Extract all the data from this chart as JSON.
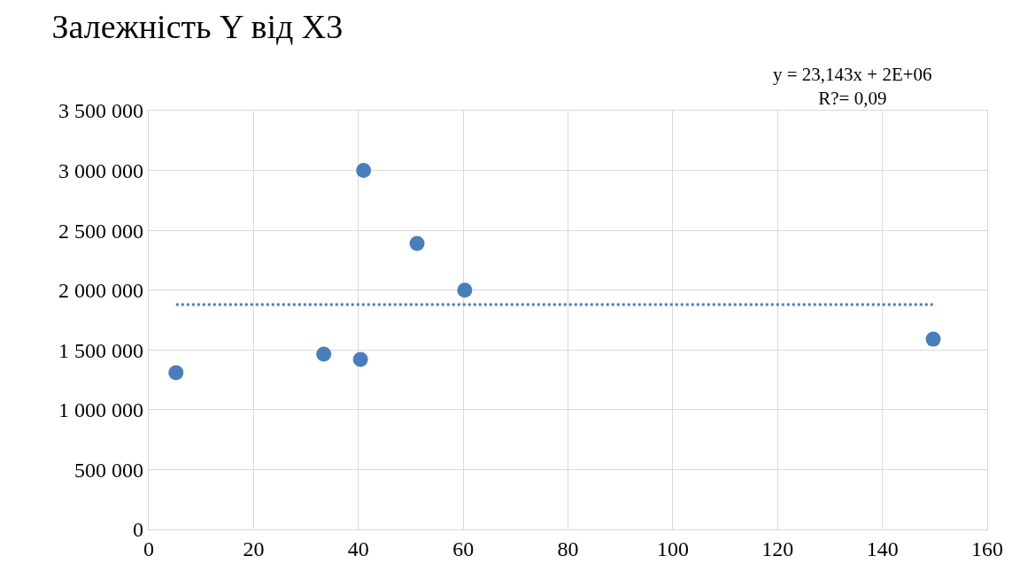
{
  "chart_data": {
    "type": "scatter",
    "title": "Залежність Y від X3",
    "annotations": [
      "y = 23,143x + 2E+06\nR?= 0,09"
    ],
    "xlim": [
      0,
      160
    ],
    "xticks": [
      0,
      20,
      40,
      60,
      80,
      100,
      120,
      140,
      160
    ],
    "ylim": [
      0,
      3500000
    ],
    "yticks": [
      {
        "value": 0,
        "label": "0"
      },
      {
        "value": 500000,
        "label": "500 000"
      },
      {
        "value": 1000000,
        "label": "1 000 000"
      },
      {
        "value": 1500000,
        "label": "1 500 000"
      },
      {
        "value": 2000000,
        "label": "2 000 000"
      },
      {
        "value": 2500000,
        "label": "2 500 000"
      },
      {
        "value": 3000000,
        "label": "3 000 000"
      },
      {
        "value": 3500000,
        "label": "3 500 000"
      }
    ],
    "grid": true,
    "marker": "circle",
    "series": [
      {
        "color": "#4a7ebb",
        "x": [
          5.2,
          33.4,
          40.4,
          41.0,
          51.2,
          60.3,
          149.7
        ],
        "values": [
          1310000,
          1465000,
          1420000,
          3000000,
          2390000,
          2000000,
          1590000
        ]
      },
      {
        "type": "line",
        "color": "#4a7ebb",
        "line_style": "dotted",
        "marker": "none",
        "x": [
          5.2,
          149.7
        ],
        "values": [
          1880000,
          1880000
        ]
      }
    ]
  }
}
